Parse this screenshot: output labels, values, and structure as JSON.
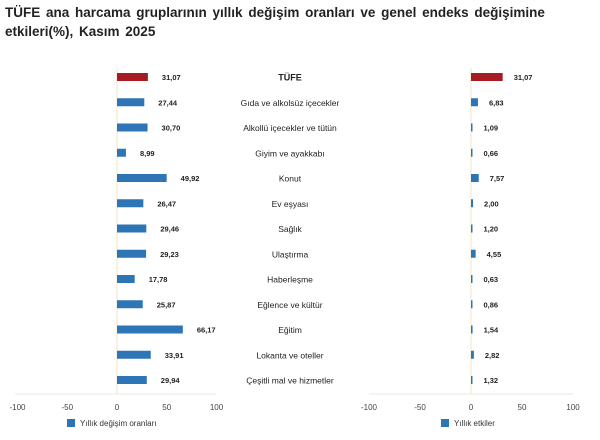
{
  "title": "TÜFE ana harcama gruplarının yıllık değişim oranları ve genel endeks değişimine etkileri(%), Kasım 2025",
  "chart_data": [
    {
      "type": "bar",
      "orientation": "horizontal",
      "series": [
        {
          "name": "Yıllık değişim oranları",
          "values": [
            31.07,
            27.44,
            30.7,
            8.99,
            49.92,
            26.47,
            29.46,
            29.23,
            17.78,
            25.87,
            66.17,
            33.91,
            29.94
          ],
          "labels": [
            "31,07",
            "27,44",
            "30,70",
            "8,99",
            "49,92",
            "26,47",
            "29,46",
            "29,23",
            "17,78",
            "25,87",
            "66,17",
            "33,91",
            "29,94"
          ]
        }
      ],
      "xlim": [
        -100,
        100
      ],
      "ticks": [
        "-100",
        "-50",
        "0",
        "50",
        "100"
      ],
      "legend": "bottom"
    },
    {
      "type": "bar",
      "orientation": "horizontal",
      "series": [
        {
          "name": "Yıllık etkiler",
          "values": [
            31.07,
            6.83,
            1.09,
            0.66,
            7.57,
            2.0,
            1.2,
            4.55,
            0.63,
            0.86,
            1.54,
            2.82,
            1.32
          ],
          "labels": [
            "31,07",
            "6,83",
            "1,09",
            "0,66",
            "7,57",
            "2,00",
            "1,20",
            "4,55",
            "0,63",
            "0,86",
            "1,54",
            "2,82",
            "1,32"
          ]
        }
      ],
      "xlim": [
        -100,
        100
      ],
      "ticks": [
        "-100",
        "-50",
        "0",
        "50",
        "100"
      ],
      "legend": "bottom"
    }
  ],
  "categories": [
    "TÜFE",
    "Gıda ve alkolsüz içecekler",
    "Alkollü içecekler ve tütün",
    "Giyim ve ayakkabı",
    "Konut",
    "Ev eşyası",
    "Sağlık",
    "Ulaştırma",
    "Haberleşme",
    "Eğlence ve kültür",
    "Eğitim",
    "Lokanta ve oteller",
    "Çeşitli mal ve hizmetler"
  ],
  "colors": {
    "highlight": "#A61C22",
    "bar": "#2E75B6",
    "axis": "#E8E8E8",
    "zero": "#F2E6C8"
  }
}
